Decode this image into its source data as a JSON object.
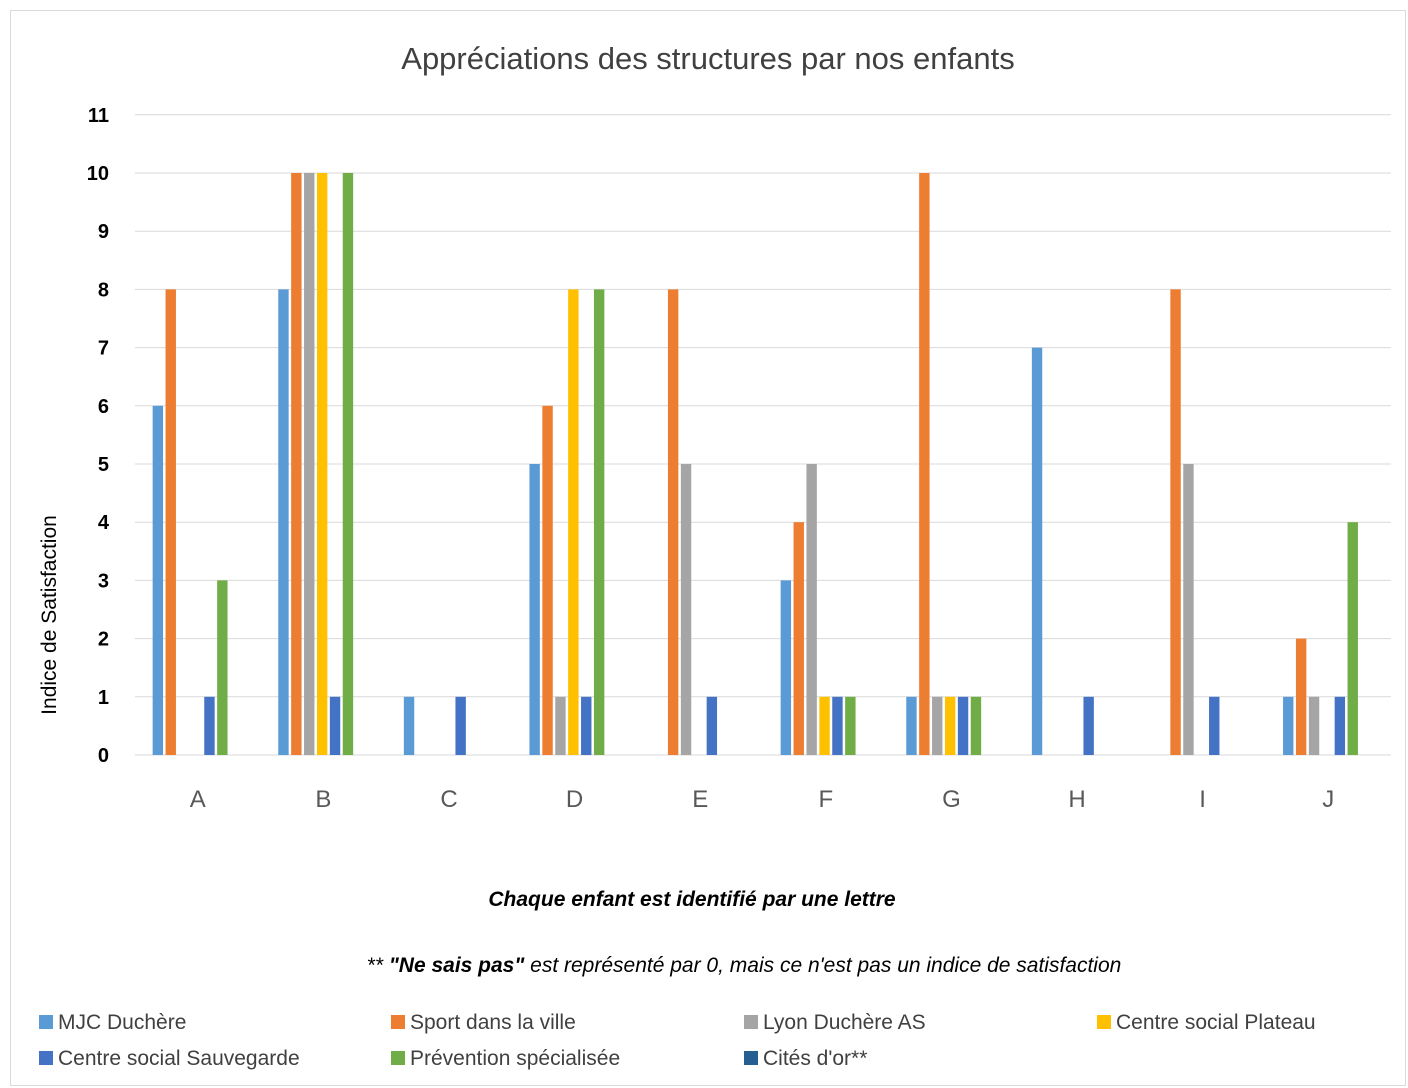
{
  "chart_data": {
    "type": "bar",
    "title": "Appréciations des structures par nos enfants",
    "xlabel": "Chaque enfant est identifié par une lettre",
    "ylabel": "Indice de Satisfaction",
    "note": {
      "prefix": "** ",
      "strong": "\"Ne sais pas\"",
      "rest": " est représenté par 0, mais ce n'est pas un indice de satisfaction"
    },
    "categories": [
      "A",
      "B",
      "C",
      "D",
      "E",
      "F",
      "G",
      "H",
      "I",
      "J"
    ],
    "ylim": [
      0,
      11
    ],
    "yticks": [
      0,
      1,
      2,
      3,
      4,
      5,
      6,
      7,
      8,
      9,
      10,
      11
    ],
    "grid": true,
    "legend_position": "bottom",
    "series": [
      {
        "name": "MJC Duchère",
        "color": "#5b9bd5",
        "values": [
          6,
          8,
          1,
          5,
          0,
          3,
          1,
          7,
          0,
          1
        ]
      },
      {
        "name": "Sport dans la ville",
        "color": "#ed7d31",
        "values": [
          8,
          10,
          0,
          6,
          8,
          4,
          10,
          0,
          8,
          2
        ]
      },
      {
        "name": "Lyon Duchère AS",
        "color": "#a5a5a5",
        "values": [
          0,
          10,
          0,
          1,
          5,
          5,
          1,
          0,
          5,
          1
        ]
      },
      {
        "name": "Centre social Plateau",
        "color": "#ffc000",
        "values": [
          0,
          10,
          0,
          8,
          0,
          1,
          1,
          0,
          0,
          0
        ]
      },
      {
        "name": "Centre social Sauvegarde",
        "color": "#4472c4",
        "values": [
          1,
          1,
          1,
          1,
          1,
          1,
          1,
          1,
          1,
          1
        ]
      },
      {
        "name": "Prévention spécialisée",
        "color": "#70ad47",
        "values": [
          3,
          10,
          0,
          8,
          0,
          1,
          1,
          0,
          0,
          4
        ]
      },
      {
        "name": "Cités d'or**",
        "color": "#255e91",
        "values": [
          0,
          0,
          0,
          0,
          0,
          0,
          0,
          0,
          0,
          0
        ]
      }
    ]
  }
}
